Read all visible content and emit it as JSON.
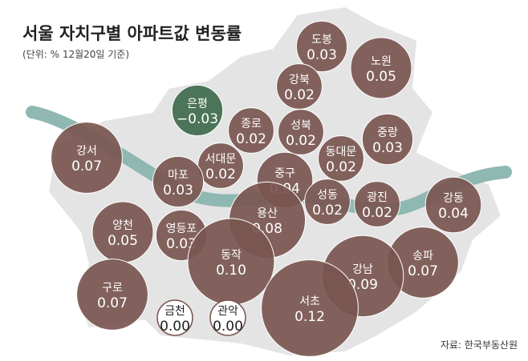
{
  "title": "서울 자치구별 아파트값 변동률",
  "subtitle": "(단위: %  12월20일 기준)",
  "source": "자료: 한국부동산원",
  "colors": {
    "rise": "#7a5650",
    "fall": "#3f6a4c",
    "flat": "#ffffff",
    "flat_stroke": "#7a5650"
  },
  "districts": [
    {
      "name": "도봉",
      "value": 0.03
    },
    {
      "name": "노원",
      "value": 0.05
    },
    {
      "name": "강북",
      "value": 0.02
    },
    {
      "name": "은평",
      "value": -0.03,
      "label": "−0.03"
    },
    {
      "name": "종로",
      "value": 0.02
    },
    {
      "name": "성북",
      "value": 0.02
    },
    {
      "name": "중랑",
      "value": 0.03
    },
    {
      "name": "강서",
      "value": 0.07
    },
    {
      "name": "서대문",
      "value": 0.02
    },
    {
      "name": "동대문",
      "value": 0.02
    },
    {
      "name": "마포",
      "value": 0.03
    },
    {
      "name": "중구",
      "value": 0.04
    },
    {
      "name": "성동",
      "value": 0.02
    },
    {
      "name": "광진",
      "value": 0.02
    },
    {
      "name": "강동",
      "value": 0.04
    },
    {
      "name": "용산",
      "value": 0.08
    },
    {
      "name": "양천",
      "value": 0.05
    },
    {
      "name": "영등포",
      "value": 0.03
    },
    {
      "name": "동작",
      "value": 0.1,
      "label": "0.10"
    },
    {
      "name": "송파",
      "value": 0.07
    },
    {
      "name": "강남",
      "value": 0.09
    },
    {
      "name": "구로",
      "value": 0.07
    },
    {
      "name": "서초",
      "value": 0.12
    },
    {
      "name": "금천",
      "value": 0,
      "label": "0.00"
    },
    {
      "name": "관악",
      "value": 0,
      "label": "0.00"
    }
  ]
}
